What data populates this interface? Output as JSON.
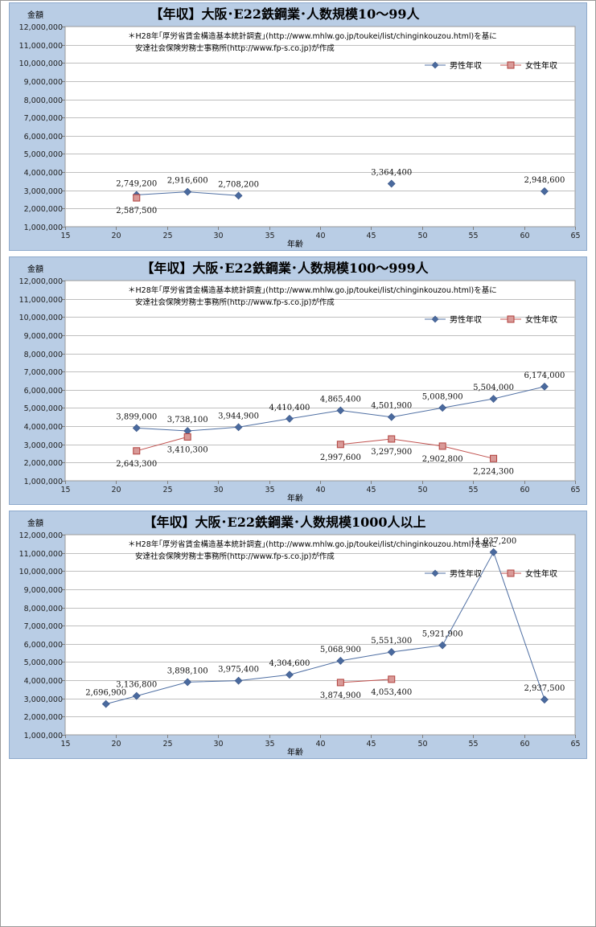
{
  "chart_data": [
    {
      "type": "line",
      "title": "【年収】大阪･E22鉄鋼業･人数規模10～99人",
      "note_lines": [
        "＊H28年｢厚労省賃金構造基本統計調査｣(http://www.mhlw.go.jp/toukei/list/chinginkouzou.html)を基に",
        "安達社会保険労務士事務所(http://www.fp-s.co.jp)が作成"
      ],
      "ylabel": "金額",
      "xlabel": "年齢",
      "xlim": [
        15,
        65
      ],
      "x_ticks": [
        "15",
        "20",
        "25",
        "30",
        "35",
        "40",
        "45",
        "50",
        "55",
        "60",
        "65"
      ],
      "ylim": [
        1000000,
        12000000
      ],
      "y_ticks": [
        "1,000,000",
        "2,000,000",
        "3,000,000",
        "4,000,000",
        "5,000,000",
        "6,000,000",
        "7,000,000",
        "8,000,000",
        "9,000,000",
        "10,000,000",
        "11,000,000",
        "12,000,000"
      ],
      "legend_position": "top-right",
      "grid": "horizontal",
      "series": [
        {
          "name": "男性年収",
          "color": "#4f6fa3",
          "marker": "diamond",
          "segments": [
            [
              {
                "x": 22,
                "y": 2749200,
                "label": "2,749,200"
              },
              {
                "x": 27,
                "y": 2916600,
                "label": "2,916,600"
              },
              {
                "x": 32,
                "y": 2708200,
                "label": "2,708,200"
              }
            ],
            [
              {
                "x": 47,
                "y": 3364400,
                "label": "3,364,400"
              }
            ],
            [
              {
                "x": 62,
                "y": 2948600,
                "label": "2,948,600"
              }
            ]
          ]
        },
        {
          "name": "女性年収",
          "color": "#c0504d",
          "marker": "square",
          "segments": [
            [
              {
                "x": 22,
                "y": 2587500,
                "label": "2,587,500"
              }
            ]
          ]
        }
      ]
    },
    {
      "type": "line",
      "title": "【年収】大阪･E22鉄鋼業･人数規模100～999人",
      "note_lines": [
        "＊H28年｢厚労省賃金構造基本統計調査｣(http://www.mhlw.go.jp/toukei/list/chinginkouzou.html)を基に",
        "安達社会保険労務士事務所(http://www.fp-s.co.jp)が作成"
      ],
      "ylabel": "金額",
      "xlabel": "年齢",
      "xlim": [
        15,
        65
      ],
      "x_ticks": [
        "15",
        "20",
        "25",
        "30",
        "35",
        "40",
        "45",
        "50",
        "55",
        "60",
        "65"
      ],
      "ylim": [
        1000000,
        12000000
      ],
      "y_ticks": [
        "1,000,000",
        "2,000,000",
        "3,000,000",
        "4,000,000",
        "5,000,000",
        "6,000,000",
        "7,000,000",
        "8,000,000",
        "9,000,000",
        "10,000,000",
        "11,000,000",
        "12,000,000"
      ],
      "legend_position": "top-right",
      "grid": "horizontal",
      "series": [
        {
          "name": "男性年収",
          "color": "#4f6fa3",
          "marker": "diamond",
          "segments": [
            [
              {
                "x": 22,
                "y": 3899000,
                "label": "3,899,000"
              },
              {
                "x": 27,
                "y": 3738100,
                "label": "3,738,100"
              },
              {
                "x": 32,
                "y": 3944900,
                "label": "3,944,900"
              },
              {
                "x": 37,
                "y": 4410400,
                "label": "4,410,400"
              },
              {
                "x": 42,
                "y": 4865400,
                "label": "4,865,400"
              },
              {
                "x": 47,
                "y": 4501900,
                "label": "4,501,900"
              },
              {
                "x": 52,
                "y": 5008900,
                "label": "5,008,900"
              },
              {
                "x": 57,
                "y": 5504000,
                "label": "5,504,000"
              },
              {
                "x": 62,
                "y": 6174000,
                "label": "6,174,000"
              }
            ]
          ]
        },
        {
          "name": "女性年収",
          "color": "#c0504d",
          "marker": "square",
          "segments": [
            [
              {
                "x": 22,
                "y": 2643300,
                "label": "2,643,300"
              },
              {
                "x": 27,
                "y": 3410300,
                "label": "3,410,300"
              }
            ],
            [
              {
                "x": 42,
                "y": 2997600,
                "label": "2,997,600"
              },
              {
                "x": 47,
                "y": 3297900,
                "label": "3,297,900"
              },
              {
                "x": 52,
                "y": 2902800,
                "label": "2,902,800"
              },
              {
                "x": 57,
                "y": 2224300,
                "label": "2,224,300"
              }
            ]
          ]
        }
      ]
    },
    {
      "type": "line",
      "title": "【年収】大阪･E22鉄鋼業･人数規模1000人以上",
      "note_lines": [
        "＊H28年｢厚労省賃金構造基本統計調査｣(http://www.mhlw.go.jp/toukei/list/chinginkouzou.html)を基に",
        "安達社会保険労務士事務所(http://www.fp-s.co.jp)が作成"
      ],
      "ylabel": "金額",
      "xlabel": "年齢",
      "xlim": [
        15,
        65
      ],
      "x_ticks": [
        "15",
        "20",
        "25",
        "30",
        "35",
        "40",
        "45",
        "50",
        "55",
        "60",
        "65"
      ],
      "ylim": [
        1000000,
        12000000
      ],
      "y_ticks": [
        "1,000,000",
        "2,000,000",
        "3,000,000",
        "4,000,000",
        "5,000,000",
        "6,000,000",
        "7,000,000",
        "8,000,000",
        "9,000,000",
        "10,000,000",
        "11,000,000",
        "12,000,000"
      ],
      "legend_position": "top-right",
      "grid": "horizontal",
      "series": [
        {
          "name": "男性年収",
          "color": "#4f6fa3",
          "marker": "diamond",
          "segments": [
            [
              {
                "x": 19,
                "y": 2696900,
                "label": "2,696,900"
              },
              {
                "x": 22,
                "y": 3136800,
                "label": "3,136,800"
              },
              {
                "x": 27,
                "y": 3898100,
                "label": "3,898,100"
              },
              {
                "x": 32,
                "y": 3975400,
                "label": "3,975,400"
              },
              {
                "x": 37,
                "y": 4304600,
                "label": "4,304,600"
              },
              {
                "x": 42,
                "y": 5068900,
                "label": "5,068,900"
              },
              {
                "x": 47,
                "y": 5551300,
                "label": "5,551,300"
              },
              {
                "x": 52,
                "y": 5921900,
                "label": "5,921,900"
              },
              {
                "x": 57,
                "y": 11037200,
                "label": "11,037,200"
              },
              {
                "x": 62,
                "y": 2937500,
                "label": "2,937,500"
              }
            ]
          ]
        },
        {
          "name": "女性年収",
          "color": "#c0504d",
          "marker": "square",
          "segments": [
            [
              {
                "x": 42,
                "y": 3874900,
                "label": "3,874,900"
              },
              {
                "x": 47,
                "y": 4053400,
                "label": "4,053,400"
              }
            ]
          ]
        }
      ]
    }
  ]
}
